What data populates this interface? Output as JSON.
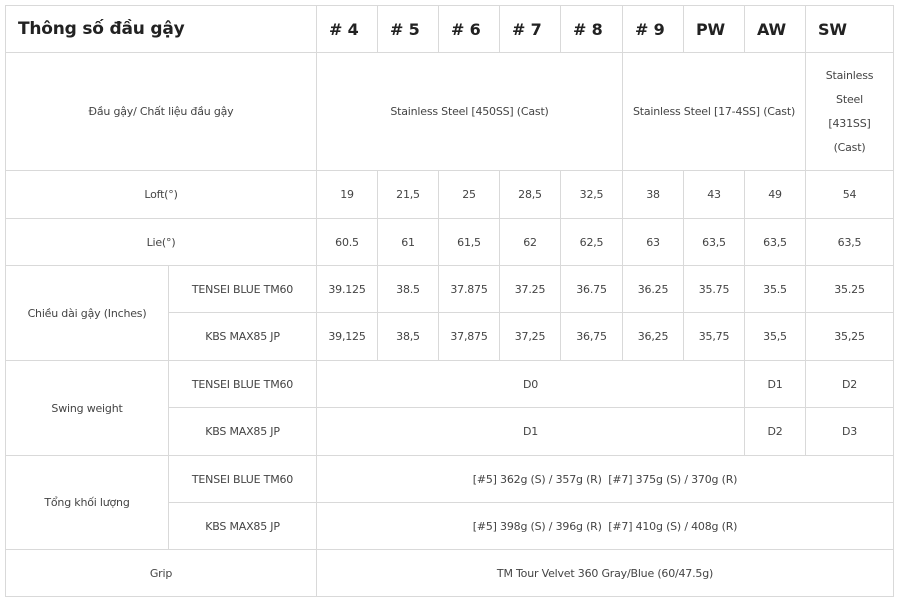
{
  "header": {
    "title": "Thông số đầu gậy",
    "columns": [
      "# 4",
      "# 5",
      "# 6",
      "# 7",
      "# 8",
      "# 9",
      "PW",
      "AW",
      "SW"
    ]
  },
  "head_material": {
    "label": "Đầu gậy/ Chất liệu đầu gậy",
    "group1": "Stainless Steel [450SS] (Cast)",
    "group2": "Stainless Steel [17-4SS] (Cast)",
    "sw_lines": [
      "Stainless",
      "Steel",
      "[431SS]",
      "(Cast)"
    ]
  },
  "loft": {
    "label": "Loft(°)",
    "values": [
      "19",
      "21,5",
      "25",
      "28,5",
      "32,5",
      "38",
      "43",
      "49",
      "54"
    ]
  },
  "lie": {
    "label": "Lie(°)",
    "values": [
      "60.5",
      "61",
      "61,5",
      "62",
      "62,5",
      "63",
      "63,5",
      "63,5",
      "63,5"
    ]
  },
  "length": {
    "label": "Chiều dài gậy (Inches)",
    "rows": [
      {
        "shaft": "TENSEI BLUE TM60",
        "values": [
          "39.125",
          "38.5",
          "37.875",
          "37.25",
          "36.75",
          "36.25",
          "35.75",
          "35.5",
          "35.25"
        ]
      },
      {
        "shaft": "KBS MAX85 JP",
        "values": [
          "39,125",
          "38,5",
          "37,875",
          "37,25",
          "36,75",
          "36,25",
          "35,75",
          "35,5",
          "35,25"
        ]
      }
    ]
  },
  "swing_weight": {
    "label": "Swing weight",
    "rows": [
      {
        "shaft": "TENSEI BLUE TM60",
        "main": "D0",
        "aw": "D1",
        "sw": "D2"
      },
      {
        "shaft": "KBS MAX85 JP",
        "main": "D1",
        "aw": "D2",
        "sw": "D3"
      }
    ]
  },
  "total_weight": {
    "label": "Tổng khối lượng",
    "rows": [
      {
        "shaft": "TENSEI BLUE TM60",
        "value": "[#5] 362g (S) / 357g (R)  [#7] 375g (S) / 370g (R)"
      },
      {
        "shaft": "KBS MAX85 JP",
        "value": "[#5] 398g (S) / 396g (R)  [#7] 410g (S) / 408g (R)"
      }
    ]
  },
  "grip": {
    "label": "Grip",
    "value": "TM Tour Velvet 360 Gray/Blue (60/47.5g)"
  }
}
